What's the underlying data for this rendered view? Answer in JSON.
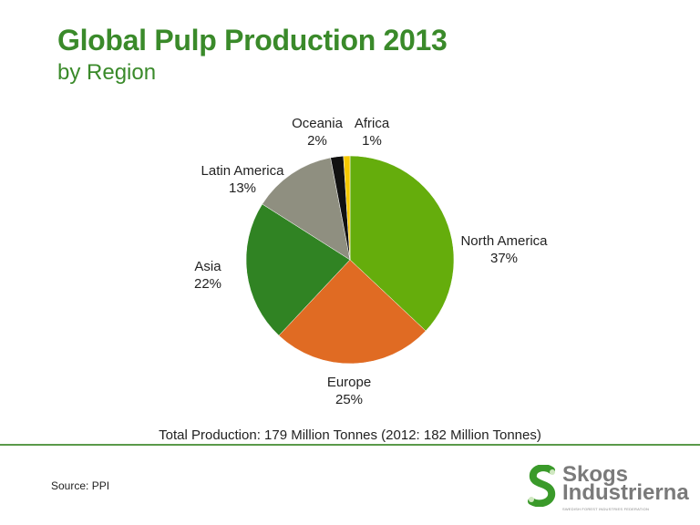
{
  "header": {
    "title": "Global Pulp Production 2013",
    "subtitle": "by Region"
  },
  "chart_data": {
    "type": "pie",
    "title": "Global Pulp Production 2013",
    "subtitle": "by Region",
    "categories": [
      "North America",
      "Europe",
      "Asia",
      "Latin America",
      "Oceania",
      "Africa"
    ],
    "values": [
      37,
      25,
      22,
      13,
      2,
      1
    ],
    "unit": "%",
    "colors": [
      "#65ad0c",
      "#e06b23",
      "#308323",
      "#8f8f80",
      "#111111",
      "#f5c800"
    ],
    "start_angle": "12 o'clock",
    "direction": "clockwise",
    "labels": [
      {
        "name": "North America",
        "pct": "37%"
      },
      {
        "name": "Europe",
        "pct": "25%"
      },
      {
        "name": "Asia",
        "pct": "22%"
      },
      {
        "name": "Latin America",
        "pct": "13%"
      },
      {
        "name": "Oceania",
        "pct": "2%"
      },
      {
        "name": "Africa",
        "pct": "1%"
      }
    ],
    "annotation": "Total Production: 179 Million Tonnes (2012: 182 Million Tonnes)"
  },
  "footer": {
    "source": "Source: PPI",
    "logo": {
      "line1": "Skogs",
      "line2": "Industrierna",
      "tagline": "SWEDISH FOREST INDUSTRIES FEDERATION",
      "icon": "s-leaf-logo-icon"
    }
  }
}
